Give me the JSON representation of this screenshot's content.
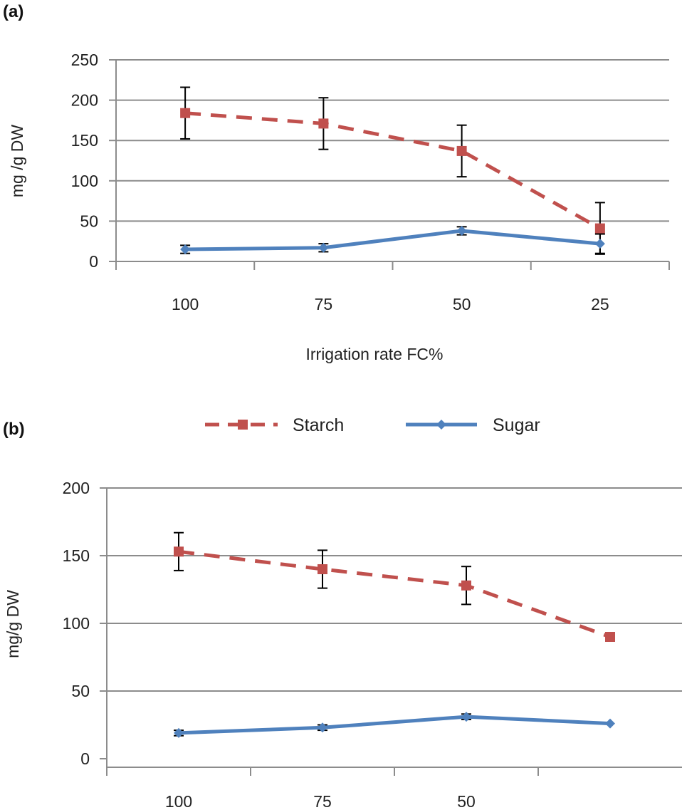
{
  "chart_data": [
    {
      "type": "line",
      "panel_label": "(a)",
      "title": "",
      "xlabel": "Irrigation rate FC%",
      "ylabel": "mg /g DW",
      "categories": [
        "100",
        "75",
        "50",
        "25"
      ],
      "ylim": [
        0,
        250
      ],
      "yticks": [
        0,
        50,
        100,
        150,
        200,
        250
      ],
      "grid": true,
      "series": [
        {
          "name": "Starch",
          "color": "#c0504d",
          "style": "dashed",
          "marker": "square",
          "values": [
            184,
            171,
            137,
            41
          ],
          "errors": [
            32,
            32,
            32,
            32
          ]
        },
        {
          "name": "Sugar",
          "color": "#4f81bd",
          "style": "solid",
          "marker": "diamond",
          "values": [
            15,
            17,
            38,
            22
          ],
          "errors": [
            5,
            5,
            5,
            12
          ]
        }
      ]
    },
    {
      "type": "line",
      "panel_label": "(b)",
      "title": "",
      "xlabel": "",
      "ylabel": "mg/g DW",
      "categories": [
        "100",
        "75",
        "50",
        ""
      ],
      "ylim": [
        0,
        200
      ],
      "yticks": [
        0,
        50,
        100,
        150,
        200
      ],
      "grid": true,
      "series": [
        {
          "name": "Starch",
          "color": "#c0504d",
          "style": "dashed",
          "marker": "square",
          "values": [
            153,
            140,
            128,
            90
          ],
          "errors": [
            14,
            14,
            14,
            null
          ]
        },
        {
          "name": "Sugar",
          "color": "#4f81bd",
          "style": "solid",
          "marker": "diamond",
          "values": [
            19,
            23,
            31,
            26
          ],
          "errors": [
            2,
            2,
            2,
            null
          ]
        }
      ]
    }
  ],
  "legend": {
    "placement": "top-center",
    "items": [
      {
        "label": "Starch",
        "color": "#c0504d",
        "style": "dashed",
        "marker": "square"
      },
      {
        "label": "Sugar",
        "color": "#4f81bd",
        "style": "solid",
        "marker": "diamond"
      }
    ]
  }
}
